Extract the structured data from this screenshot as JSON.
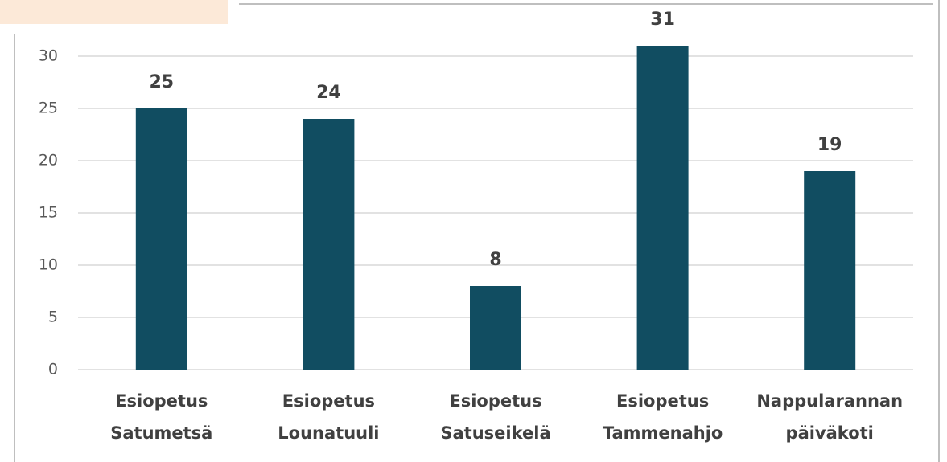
{
  "chart_data": {
    "type": "bar",
    "categories": [
      "Esiopetus Satumetsä",
      "Esiopetus Lounatuuli",
      "Esiopetus Satuseikelä",
      "Esiopetus Tammenahjo",
      "Nappularannan päiväkoti"
    ],
    "values": [
      25,
      24,
      8,
      31,
      19
    ],
    "color": "#114d61",
    "ylim": [
      0,
      35
    ],
    "yticks": [
      0,
      5,
      10,
      15,
      20,
      25,
      30
    ],
    "grid": true
  }
}
